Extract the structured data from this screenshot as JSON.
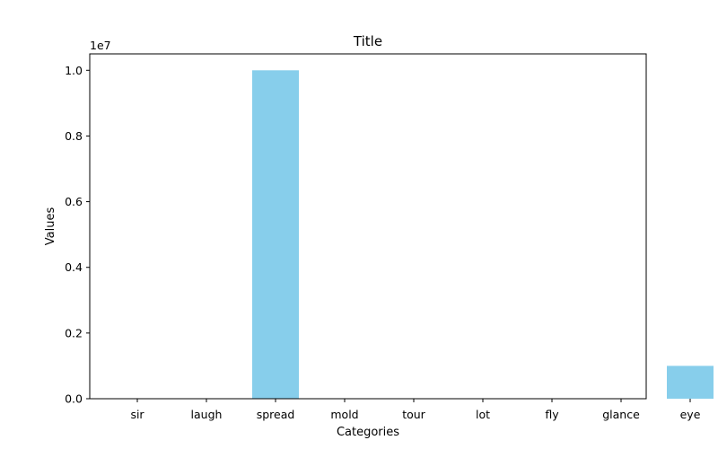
{
  "chart_data": {
    "type": "bar",
    "title": "Title",
    "xlabel": "Categories",
    "ylabel": "Values",
    "y_offset_label": "1e7",
    "categories": [
      "sir",
      "laugh",
      "spread",
      "mold",
      "tour",
      "lot",
      "fly",
      "glance",
      "eye"
    ],
    "values": [
      0,
      0,
      10000000,
      0,
      0,
      0,
      0,
      0,
      1000000
    ],
    "ylim": [
      0,
      10500000
    ],
    "yticks": [
      0,
      2000000,
      4000000,
      6000000,
      8000000,
      10000000
    ],
    "ytick_labels": [
      "0.0",
      "0.2",
      "0.4",
      "0.6",
      "0.8",
      "1.0"
    ],
    "bar_color": "#87ceeb",
    "grid": false,
    "legend": "none"
  }
}
